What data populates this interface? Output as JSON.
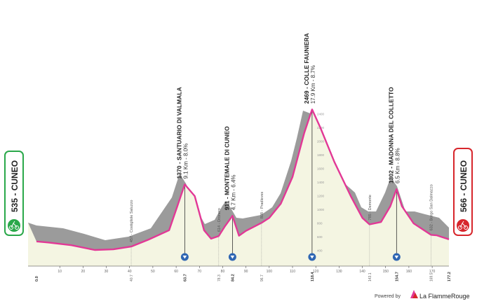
{
  "colors": {
    "road": "#e23896",
    "relief": "#9b9b9b",
    "fill": "#f4f5e2",
    "start": "#2aa84a",
    "finish": "#d7262c"
  },
  "start": {
    "elevation": "535",
    "name": "CUNEO",
    "icon": "cyclist-icon"
  },
  "finish": {
    "elevation": "566",
    "name": "CUNEO",
    "icon": "cyclist-icon"
  },
  "climbs": [
    {
      "title": "1370 - SANTUARIO DI VALMALA",
      "detail": "9.1 Km - 8.0%",
      "km": "63.7"
    },
    {
      "title": "911 - MONTEMALE DI CUNEO",
      "detail": "4.7 Km - 6.4%",
      "km": "84.2"
    },
    {
      "title": "2469 - COLLE FAUNIERA",
      "detail": "17.9 Km - 8.7%",
      "km": "118.4"
    },
    {
      "title": "1302 - MADONNA DEL COLLETTO",
      "detail": "6.5 Km - 8.8%",
      "km": "154.7"
    }
  ],
  "waypoints": [
    {
      "label": "457 - Costigliole Saluzzo",
      "km": "40.7"
    },
    {
      "label": "614 - Dronero",
      "km": "78.3"
    },
    {
      "label": "808 - Pradleves",
      "km": "96.7"
    },
    {
      "label": "785 - Demonte",
      "km": "143.1"
    },
    {
      "label": "632 - Borgo San Dalmazzo",
      "km": "169.5"
    }
  ],
  "km_start": "0.0",
  "km_end": "177.2",
  "elevation_ticks": [
    "400",
    "600",
    "800",
    "1000",
    "1200",
    "1400",
    "1600",
    "1800",
    "2000",
    "2200",
    "2400"
  ],
  "distance_ticks": [
    "10",
    "20",
    "30",
    "40",
    "50",
    "60",
    "70",
    "80",
    "90",
    "100",
    "110",
    "120",
    "130",
    "140",
    "150",
    "160",
    "170"
  ],
  "footer": {
    "powered": "Powered by",
    "brand": "La FlammeRouge",
    "logo": "flamme-rouge-logo"
  },
  "chart_data": {
    "type": "area",
    "title": "",
    "xlabel": "",
    "ylabel": "",
    "xlim": [
      0,
      177.2
    ],
    "x": [
      0,
      5,
      15,
      25,
      33,
      40.7,
      48,
      57,
      63.7,
      68,
      72,
      75,
      78.3,
      81,
      84.2,
      87,
      90,
      96.7,
      100,
      105,
      110,
      115,
      118.4,
      122,
      128,
      135,
      140,
      143.1,
      148,
      152,
      154.7,
      157,
      162,
      169.5,
      172,
      177.2
    ],
    "elevation": [
      535,
      520,
      480,
      410,
      420,
      460,
      560,
      700,
      1370,
      1200,
      700,
      575,
      614,
      760,
      911,
      620,
      690,
      808,
      880,
      1090,
      1480,
      2120,
      2469,
      2200,
      1700,
      1200,
      880,
      785,
      820,
      1050,
      1302,
      1050,
      800,
      632,
      625,
      566
    ]
  }
}
